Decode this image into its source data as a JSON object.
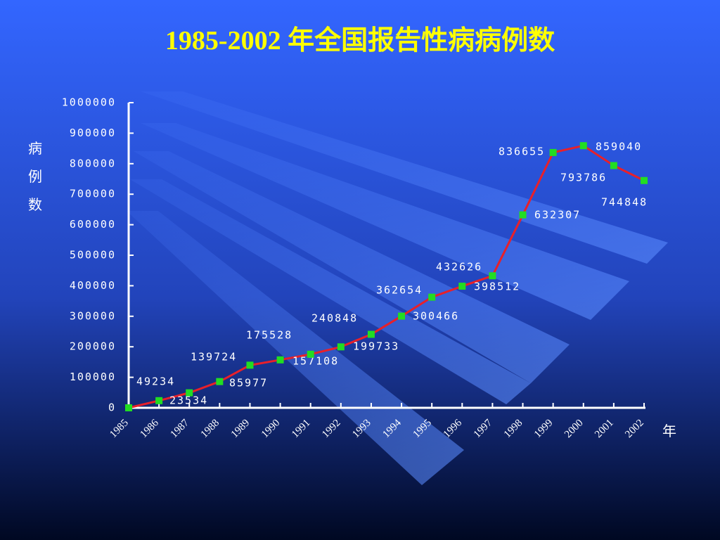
{
  "chart_data": {
    "type": "line",
    "title": "1985-2002 年全国报告性病病例数",
    "y_label": "病例数",
    "x_label": "年",
    "categories": [
      "1985",
      "1986",
      "1987",
      "1988",
      "1989",
      "1990",
      "1991",
      "1992",
      "1993",
      "1994",
      "1995",
      "1996",
      "1997",
      "1998",
      "1999",
      "2000",
      "2001",
      "2002"
    ],
    "series": [
      {
        "name": null,
        "color": "#e8202a",
        "marker_color": "#22dd22",
        "values": [
          0,
          23534,
          49234,
          85977,
          139724,
          157108,
          175528,
          199733,
          240848,
          300466,
          362654,
          398512,
          432626,
          632307,
          836655,
          859040,
          793786,
          744848
        ],
        "value_labels": [
          null,
          "23534",
          "49234",
          "85977",
          "139724",
          "157108",
          "175528",
          "199733",
          "240848",
          "300466",
          "362654",
          "398512",
          "432626",
          "632307",
          "836655",
          "859040",
          "793786",
          "744848"
        ]
      }
    ],
    "ylim": [
      0,
      1000000
    ],
    "yticks": [
      0,
      100000,
      200000,
      300000,
      400000,
      500000,
      600000,
      700000,
      800000,
      900000,
      1000000
    ],
    "grid": false
  }
}
